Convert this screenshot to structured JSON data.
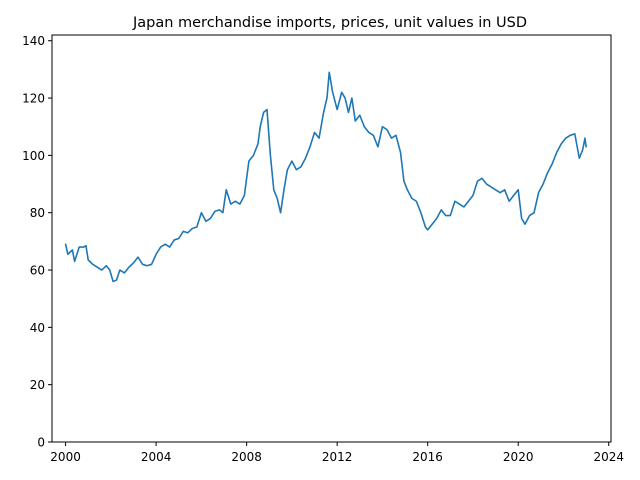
{
  "chart_data": {
    "type": "line",
    "title": "Japan merchandise imports, prices, unit values in USD",
    "xlabel": "",
    "ylabel": "",
    "xlim": [
      1999.4,
      2024.1
    ],
    "ylim": [
      0,
      142
    ],
    "x_ticks": [
      2000,
      2004,
      2008,
      2012,
      2016,
      2020,
      2024
    ],
    "y_ticks": [
      0,
      20,
      40,
      60,
      80,
      100,
      120,
      140
    ],
    "grid": false,
    "legend": "none",
    "series": [
      {
        "color": "#1f77b4",
        "x": [
          2000.0,
          2000.1,
          2000.3,
          2000.4,
          2000.6,
          2000.8,
          2000.9,
          2001.0,
          2001.2,
          2001.4,
          2001.6,
          2001.8,
          2001.95,
          2002.1,
          2002.25,
          2002.4,
          2002.6,
          2002.8,
          2003.0,
          2003.2,
          2003.4,
          2003.6,
          2003.8,
          2004.0,
          2004.2,
          2004.4,
          2004.6,
          2004.8,
          2005.0,
          2005.2,
          2005.4,
          2005.6,
          2005.8,
          2006.0,
          2006.2,
          2006.4,
          2006.6,
          2006.8,
          2006.95,
          2007.1,
          2007.3,
          2007.5,
          2007.7,
          2007.9,
          2008.1,
          2008.3,
          2008.5,
          2008.6,
          2008.75,
          2008.9,
          2009.05,
          2009.2,
          2009.35,
          2009.5,
          2009.65,
          2009.8,
          2010.0,
          2010.2,
          2010.4,
          2010.6,
          2010.8,
          2011.0,
          2011.2,
          2011.4,
          2011.55,
          2011.65,
          2011.8,
          2012.0,
          2012.2,
          2012.35,
          2012.5,
          2012.65,
          2012.8,
          2013.0,
          2013.2,
          2013.4,
          2013.6,
          2013.8,
          2014.0,
          2014.2,
          2014.4,
          2014.6,
          2014.8,
          2014.95,
          2015.1,
          2015.3,
          2015.5,
          2015.7,
          2015.9,
          2016.0,
          2016.2,
          2016.4,
          2016.6,
          2016.8,
          2017.0,
          2017.2,
          2017.4,
          2017.6,
          2017.8,
          2018.0,
          2018.2,
          2018.4,
          2018.6,
          2018.8,
          2019.0,
          2019.2,
          2019.4,
          2019.6,
          2019.8,
          2020.0,
          2020.15,
          2020.3,
          2020.5,
          2020.7,
          2020.9,
          2021.1,
          2021.3,
          2021.5,
          2021.7,
          2021.9,
          2022.1,
          2022.3,
          2022.5,
          2022.7,
          2022.85,
          2022.95,
          2023.0
        ],
        "y": [
          69,
          65.5,
          67,
          63,
          68,
          68,
          68.5,
          63.5,
          62,
          61,
          60,
          61.5,
          60,
          56,
          56.5,
          60,
          59,
          61,
          62.5,
          64.5,
          62,
          61.5,
          62,
          65.5,
          68,
          69,
          68,
          70.5,
          71,
          73.5,
          73,
          74.5,
          75,
          80,
          77,
          78,
          80.5,
          81,
          80,
          88,
          83,
          84,
          83,
          86,
          98,
          100,
          104,
          110,
          115,
          116,
          100,
          88,
          85,
          80,
          88,
          95,
          98,
          95,
          96,
          99,
          103,
          108,
          106,
          115,
          120,
          129,
          122,
          116,
          122,
          120,
          115,
          120,
          112,
          114,
          110,
          108,
          107,
          103,
          110,
          109,
          106,
          107,
          101,
          91,
          88,
          85,
          84,
          80,
          75,
          74,
          76,
          78,
          81,
          79,
          79,
          84,
          83,
          82,
          84,
          86,
          91,
          92,
          90,
          89,
          88,
          87,
          88,
          84,
          86,
          88,
          78,
          76,
          79,
          80,
          87,
          90,
          94,
          97,
          101,
          104,
          106,
          107,
          107.5,
          99,
          102,
          106,
          103
        ]
      }
    ]
  }
}
